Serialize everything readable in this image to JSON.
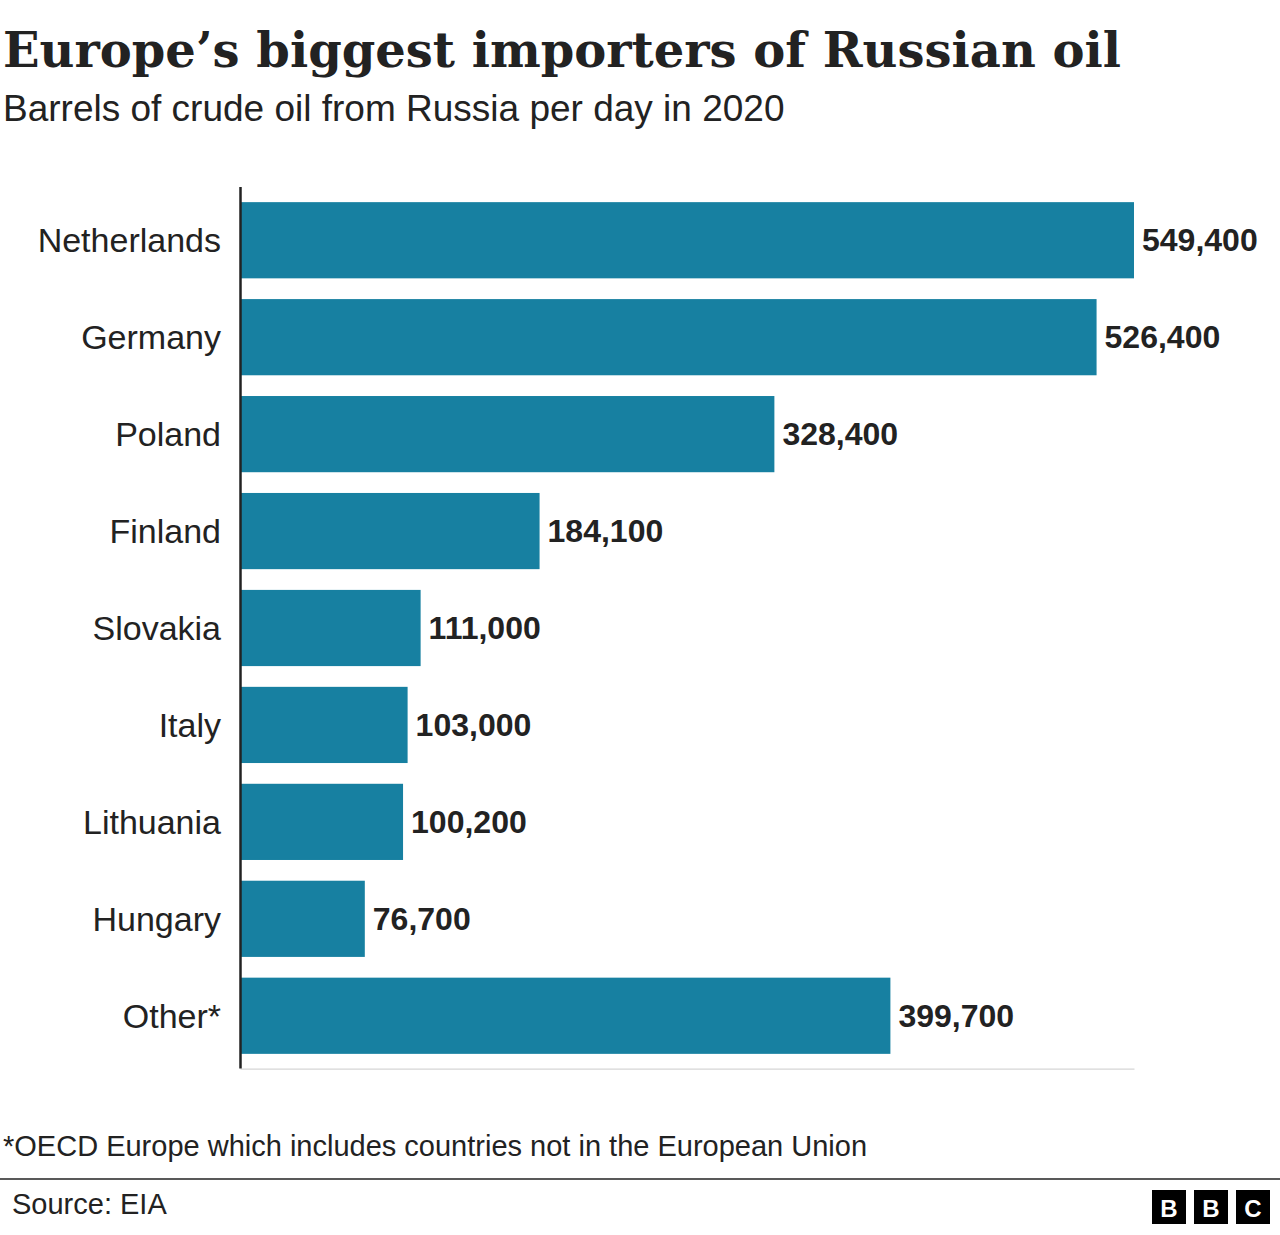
{
  "chart_data": {
    "type": "bar",
    "title": "Europe’s biggest importers of Russian oil",
    "subtitle": "Barrels of crude oil from Russia per day in 2020",
    "categories": [
      "Netherlands",
      "Germany",
      "Poland",
      "Finland",
      "Slovakia",
      "Italy",
      "Lithuania",
      "Hungary",
      "Other*"
    ],
    "values": [
      549400,
      526400,
      328400,
      184100,
      111000,
      103000,
      100200,
      76700,
      399700
    ],
    "value_labels": [
      "549,400",
      "526,400",
      "328,400",
      "184,100",
      "111,000",
      "103,000",
      "100,200",
      "76,700",
      "399,700"
    ],
    "color": "#1780a1",
    "orientation": "horizontal",
    "data_labels": true,
    "tick_labels": "y",
    "grid": false,
    "xlim": [
      0,
      549400
    ],
    "xticks": [
      0
    ],
    "note": "*OECD Europe which includes countries not in the European Union",
    "source": "Source: EIA",
    "logo": "BBC"
  }
}
